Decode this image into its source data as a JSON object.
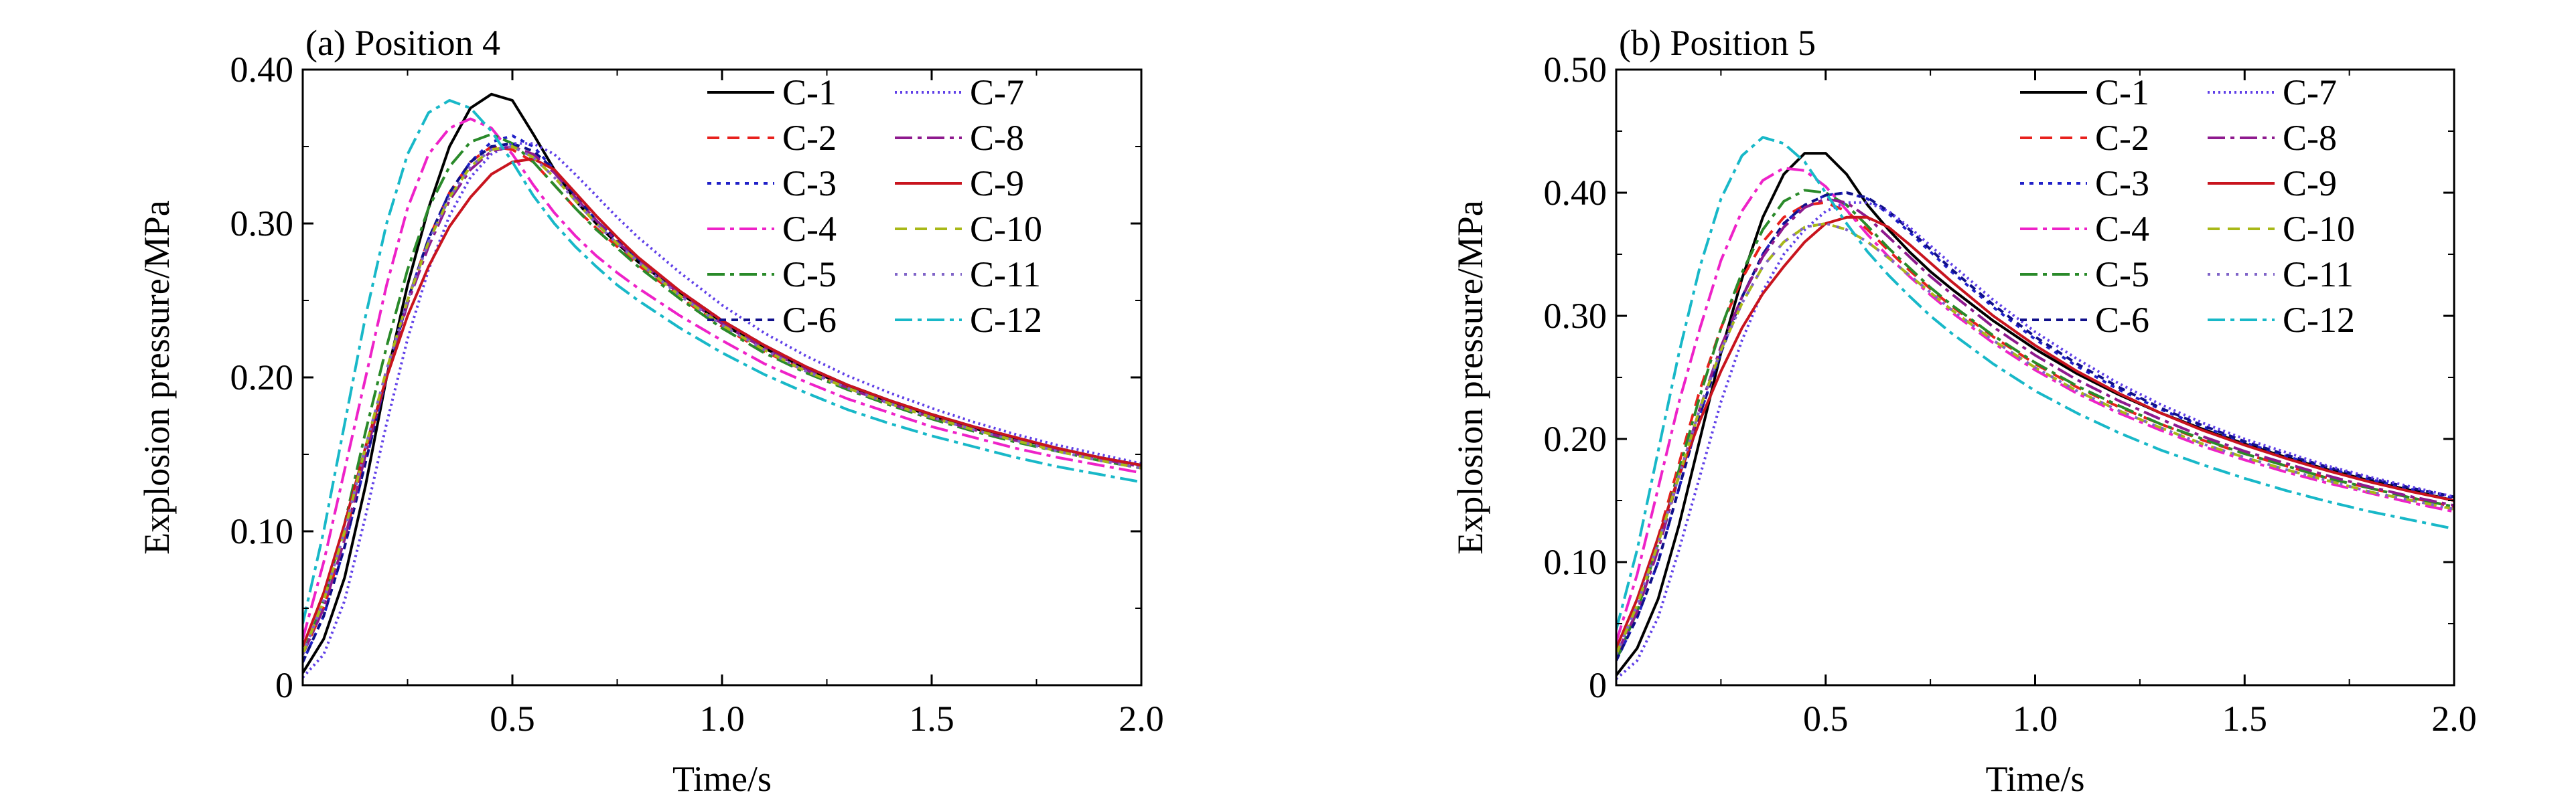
{
  "chart_data": [
    {
      "type": "line",
      "title": "(a) Position 4",
      "xlabel": "Time/s",
      "ylabel": "Explosion pressure/MPa",
      "xlim": [
        0,
        2.0
      ],
      "ylim": [
        0,
        0.4
      ],
      "x_ticks": [
        0.5,
        1.0,
        1.5,
        2.0
      ],
      "x_tick_labels": [
        "0.5",
        "1.0",
        "1.5",
        "2.0"
      ],
      "y_ticks": [
        0,
        0.1,
        0.2,
        0.3,
        0.4
      ],
      "y_tick_labels": [
        "0",
        "0.10",
        "0.20",
        "0.30",
        "0.40"
      ],
      "grid": false,
      "legend": "top-right",
      "x": [
        0,
        0.05,
        0.1,
        0.15,
        0.2,
        0.25,
        0.3,
        0.35,
        0.4,
        0.45,
        0.5,
        0.55,
        0.6,
        0.65,
        0.7,
        0.75,
        0.8,
        0.9,
        1.0,
        1.1,
        1.2,
        1.3,
        1.4,
        1.5,
        1.6,
        1.7,
        1.8,
        1.9,
        2.0
      ],
      "series": [
        {
          "name": "C-1",
          "color": "#000000",
          "dash": "",
          "values": [
            0.008,
            0.03,
            0.07,
            0.13,
            0.2,
            0.26,
            0.31,
            0.35,
            0.375,
            0.384,
            0.38,
            0.358,
            0.335,
            0.315,
            0.3,
            0.287,
            0.275,
            0.255,
            0.235,
            0.219,
            0.206,
            0.194,
            0.184,
            0.175,
            0.167,
            0.16,
            0.154,
            0.148,
            0.143
          ]
        },
        {
          "name": "C-2",
          "color": "#e8211d",
          "dash": "18,12",
          "values": [
            0.02,
            0.05,
            0.095,
            0.15,
            0.2,
            0.25,
            0.29,
            0.32,
            0.34,
            0.35,
            0.348,
            0.34,
            0.325,
            0.31,
            0.297,
            0.285,
            0.273,
            0.252,
            0.233,
            0.217,
            0.204,
            0.193,
            0.183,
            0.174,
            0.166,
            0.159,
            0.153,
            0.147,
            0.142
          ]
        },
        {
          "name": "C-3",
          "color": "#2020c8",
          "dash": "6,8",
          "values": [
            0.015,
            0.045,
            0.09,
            0.145,
            0.2,
            0.25,
            0.29,
            0.32,
            0.34,
            0.353,
            0.357,
            0.35,
            0.335,
            0.318,
            0.302,
            0.289,
            0.277,
            0.256,
            0.237,
            0.221,
            0.207,
            0.195,
            0.185,
            0.176,
            0.168,
            0.161,
            0.154,
            0.148,
            0.143
          ]
        },
        {
          "name": "C-4",
          "color": "#ee22c8",
          "dash": "26,8,6,8",
          "values": [
            0.03,
            0.08,
            0.14,
            0.2,
            0.26,
            0.31,
            0.345,
            0.362,
            0.368,
            0.362,
            0.345,
            0.325,
            0.307,
            0.292,
            0.279,
            0.268,
            0.258,
            0.24,
            0.224,
            0.209,
            0.197,
            0.186,
            0.177,
            0.168,
            0.161,
            0.154,
            0.148,
            0.143,
            0.138
          ]
        },
        {
          "name": "C-5",
          "color": "#2a8a2a",
          "dash": "26,8,6,8",
          "values": [
            0.02,
            0.055,
            0.105,
            0.165,
            0.22,
            0.27,
            0.31,
            0.337,
            0.353,
            0.358,
            0.352,
            0.34,
            0.325,
            0.31,
            0.296,
            0.284,
            0.272,
            0.251,
            0.232,
            0.216,
            0.203,
            0.192,
            0.182,
            0.173,
            0.165,
            0.158,
            0.152,
            0.146,
            0.141
          ]
        },
        {
          "name": "C-6",
          "color": "#10108a",
          "dash": "10,8",
          "values": [
            0.015,
            0.045,
            0.09,
            0.145,
            0.2,
            0.25,
            0.29,
            0.32,
            0.34,
            0.35,
            0.352,
            0.347,
            0.335,
            0.318,
            0.302,
            0.289,
            0.277,
            0.256,
            0.237,
            0.221,
            0.207,
            0.195,
            0.185,
            0.176,
            0.168,
            0.161,
            0.154,
            0.148,
            0.143
          ]
        },
        {
          "name": "C-7",
          "color": "#6040e8",
          "dash": "3,5",
          "values": [
            0.005,
            0.02,
            0.055,
            0.11,
            0.17,
            0.225,
            0.27,
            0.305,
            0.33,
            0.345,
            0.352,
            0.352,
            0.345,
            0.332,
            0.318,
            0.304,
            0.291,
            0.268,
            0.247,
            0.229,
            0.214,
            0.201,
            0.19,
            0.18,
            0.171,
            0.163,
            0.156,
            0.15,
            0.144
          ]
        },
        {
          "name": "C-8",
          "color": "#8e1a8e",
          "dash": "26,8,6,8",
          "values": [
            0.02,
            0.05,
            0.095,
            0.15,
            0.2,
            0.248,
            0.285,
            0.315,
            0.335,
            0.347,
            0.35,
            0.345,
            0.333,
            0.317,
            0.302,
            0.288,
            0.276,
            0.254,
            0.235,
            0.219,
            0.205,
            0.193,
            0.183,
            0.174,
            0.166,
            0.159,
            0.153,
            0.147,
            0.142
          ]
        },
        {
          "name": "C-9",
          "color": "#c8141e",
          "dash": "",
          "values": [
            0.025,
            0.06,
            0.105,
            0.155,
            0.2,
            0.24,
            0.272,
            0.298,
            0.317,
            0.332,
            0.34,
            0.342,
            0.335,
            0.32,
            0.305,
            0.291,
            0.278,
            0.256,
            0.237,
            0.221,
            0.207,
            0.195,
            0.185,
            0.176,
            0.168,
            0.161,
            0.154,
            0.148,
            0.143
          ]
        },
        {
          "name": "C-10",
          "color": "#a8b818",
          "dash": "18,12",
          "values": [
            0.02,
            0.055,
            0.1,
            0.155,
            0.205,
            0.25,
            0.288,
            0.317,
            0.337,
            0.348,
            0.35,
            0.343,
            0.33,
            0.315,
            0.3,
            0.287,
            0.275,
            0.253,
            0.234,
            0.218,
            0.204,
            0.193,
            0.183,
            0.174,
            0.166,
            0.159,
            0.152,
            0.146,
            0.141
          ]
        },
        {
          "name": "C-11",
          "color": "#8064c8",
          "dash": "4,10",
          "values": [
            0.02,
            0.055,
            0.1,
            0.155,
            0.205,
            0.25,
            0.288,
            0.317,
            0.337,
            0.348,
            0.35,
            0.343,
            0.33,
            0.315,
            0.3,
            0.287,
            0.275,
            0.253,
            0.234,
            0.218,
            0.204,
            0.193,
            0.183,
            0.174,
            0.166,
            0.159,
            0.152,
            0.146,
            0.141
          ]
        },
        {
          "name": "C-12",
          "color": "#18b8c8",
          "dash": "26,8,6,8",
          "values": [
            0.04,
            0.1,
            0.17,
            0.24,
            0.3,
            0.345,
            0.372,
            0.38,
            0.375,
            0.36,
            0.34,
            0.318,
            0.3,
            0.285,
            0.272,
            0.26,
            0.25,
            0.232,
            0.216,
            0.202,
            0.19,
            0.179,
            0.17,
            0.162,
            0.155,
            0.148,
            0.142,
            0.137,
            0.132
          ]
        }
      ]
    },
    {
      "type": "line",
      "title": "(b) Position 5",
      "xlabel": "Time/s",
      "ylabel": "Explosion pressure/MPa",
      "xlim": [
        0,
        2.0
      ],
      "ylim": [
        0,
        0.5
      ],
      "x_ticks": [
        0.5,
        1.0,
        1.5,
        2.0
      ],
      "x_tick_labels": [
        "0.5",
        "1.0",
        "1.5",
        "2.0"
      ],
      "y_ticks": [
        0,
        0.1,
        0.2,
        0.3,
        0.4,
        0.5
      ],
      "y_tick_labels": [
        "0",
        "0.10",
        "0.20",
        "0.30",
        "0.40",
        "0.50"
      ],
      "grid": false,
      "legend": "top-right",
      "x": [
        0,
        0.05,
        0.1,
        0.15,
        0.2,
        0.25,
        0.3,
        0.35,
        0.4,
        0.45,
        0.5,
        0.55,
        0.6,
        0.65,
        0.7,
        0.75,
        0.8,
        0.9,
        1.0,
        1.1,
        1.2,
        1.3,
        1.4,
        1.5,
        1.6,
        1.7,
        1.8,
        1.9,
        2.0
      ],
      "series": [
        {
          "name": "C-1",
          "color": "#000000",
          "dash": "",
          "values": [
            0.008,
            0.03,
            0.07,
            0.13,
            0.2,
            0.27,
            0.33,
            0.38,
            0.415,
            0.432,
            0.432,
            0.415,
            0.39,
            0.37,
            0.352,
            0.336,
            0.322,
            0.296,
            0.273,
            0.253,
            0.236,
            0.221,
            0.208,
            0.196,
            0.185,
            0.175,
            0.166,
            0.158,
            0.15
          ]
        },
        {
          "name": "C-2",
          "color": "#e8211d",
          "dash": "18,12",
          "values": [
            0.025,
            0.065,
            0.12,
            0.18,
            0.24,
            0.29,
            0.33,
            0.36,
            0.38,
            0.39,
            0.392,
            0.385,
            0.37,
            0.353,
            0.337,
            0.322,
            0.308,
            0.283,
            0.261,
            0.242,
            0.226,
            0.212,
            0.199,
            0.188,
            0.178,
            0.168,
            0.16,
            0.152,
            0.145
          ]
        },
        {
          "name": "C-3",
          "color": "#2020c8",
          "dash": "6,8",
          "values": [
            0.02,
            0.055,
            0.1,
            0.16,
            0.22,
            0.27,
            0.315,
            0.35,
            0.375,
            0.39,
            0.398,
            0.4,
            0.395,
            0.383,
            0.368,
            0.352,
            0.336,
            0.307,
            0.281,
            0.259,
            0.24,
            0.224,
            0.21,
            0.197,
            0.186,
            0.176,
            0.167,
            0.159,
            0.152
          ]
        },
        {
          "name": "C-4",
          "color": "#ee22c8",
          "dash": "26,8,6,8",
          "values": [
            0.035,
            0.09,
            0.16,
            0.23,
            0.29,
            0.345,
            0.385,
            0.41,
            0.42,
            0.418,
            0.405,
            0.386,
            0.366,
            0.348,
            0.332,
            0.317,
            0.303,
            0.278,
            0.256,
            0.237,
            0.221,
            0.207,
            0.194,
            0.183,
            0.173,
            0.164,
            0.156,
            0.148,
            0.141
          ]
        },
        {
          "name": "C-5",
          "color": "#2a8a2a",
          "dash": "26,8,6,8",
          "values": [
            0.02,
            0.06,
            0.115,
            0.175,
            0.235,
            0.29,
            0.335,
            0.37,
            0.393,
            0.402,
            0.4,
            0.39,
            0.373,
            0.355,
            0.339,
            0.323,
            0.309,
            0.284,
            0.262,
            0.243,
            0.227,
            0.212,
            0.2,
            0.188,
            0.178,
            0.168,
            0.16,
            0.152,
            0.145
          ]
        },
        {
          "name": "C-6",
          "color": "#10108a",
          "dash": "10,8",
          "values": [
            0.02,
            0.055,
            0.1,
            0.16,
            0.22,
            0.27,
            0.315,
            0.35,
            0.375,
            0.39,
            0.398,
            0.4,
            0.396,
            0.385,
            0.37,
            0.354,
            0.338,
            0.309,
            0.283,
            0.261,
            0.242,
            0.225,
            0.211,
            0.198,
            0.187,
            0.177,
            0.168,
            0.16,
            0.153
          ]
        },
        {
          "name": "C-7",
          "color": "#6040e8",
          "dash": "3,5",
          "values": [
            0.005,
            0.02,
            0.055,
            0.11,
            0.17,
            0.23,
            0.28,
            0.32,
            0.35,
            0.37,
            0.385,
            0.392,
            0.392,
            0.385,
            0.372,
            0.357,
            0.342,
            0.313,
            0.287,
            0.265,
            0.245,
            0.228,
            0.213,
            0.2,
            0.189,
            0.178,
            0.169,
            0.161,
            0.153
          ]
        },
        {
          "name": "C-8",
          "color": "#8e1a8e",
          "dash": "26,8,6,8",
          "values": [
            0.025,
            0.06,
            0.11,
            0.17,
            0.225,
            0.275,
            0.315,
            0.348,
            0.372,
            0.388,
            0.395,
            0.392,
            0.38,
            0.364,
            0.348,
            0.332,
            0.318,
            0.291,
            0.268,
            0.248,
            0.231,
            0.216,
            0.202,
            0.19,
            0.18,
            0.17,
            0.161,
            0.153,
            0.146
          ]
        },
        {
          "name": "C-9",
          "color": "#c8141e",
          "dash": "",
          "values": [
            0.03,
            0.07,
            0.12,
            0.17,
            0.215,
            0.255,
            0.29,
            0.318,
            0.34,
            0.36,
            0.375,
            0.38,
            0.38,
            0.372,
            0.358,
            0.343,
            0.328,
            0.3,
            0.276,
            0.255,
            0.237,
            0.221,
            0.207,
            0.195,
            0.184,
            0.174,
            0.165,
            0.157,
            0.15
          ]
        },
        {
          "name": "C-10",
          "color": "#a8b818",
          "dash": "18,12",
          "values": [
            0.025,
            0.065,
            0.115,
            0.17,
            0.225,
            0.272,
            0.31,
            0.34,
            0.36,
            0.372,
            0.375,
            0.37,
            0.36,
            0.347,
            0.333,
            0.319,
            0.305,
            0.28,
            0.258,
            0.239,
            0.223,
            0.209,
            0.196,
            0.185,
            0.175,
            0.166,
            0.157,
            0.15,
            0.143
          ]
        },
        {
          "name": "C-11",
          "color": "#8064c8",
          "dash": "4,10",
          "values": [
            0.025,
            0.065,
            0.115,
            0.17,
            0.225,
            0.272,
            0.31,
            0.34,
            0.36,
            0.372,
            0.375,
            0.37,
            0.36,
            0.347,
            0.333,
            0.319,
            0.305,
            0.28,
            0.258,
            0.239,
            0.223,
            0.209,
            0.196,
            0.185,
            0.175,
            0.166,
            0.157,
            0.15,
            0.143
          ]
        },
        {
          "name": "C-12",
          "color": "#18b8c8",
          "dash": "26,8,6,8",
          "values": [
            0.045,
            0.11,
            0.19,
            0.27,
            0.34,
            0.395,
            0.43,
            0.445,
            0.44,
            0.425,
            0.4,
            0.375,
            0.352,
            0.333,
            0.316,
            0.3,
            0.286,
            0.261,
            0.239,
            0.221,
            0.205,
            0.191,
            0.179,
            0.168,
            0.158,
            0.149,
            0.141,
            0.134,
            0.127
          ]
        }
      ]
    }
  ]
}
